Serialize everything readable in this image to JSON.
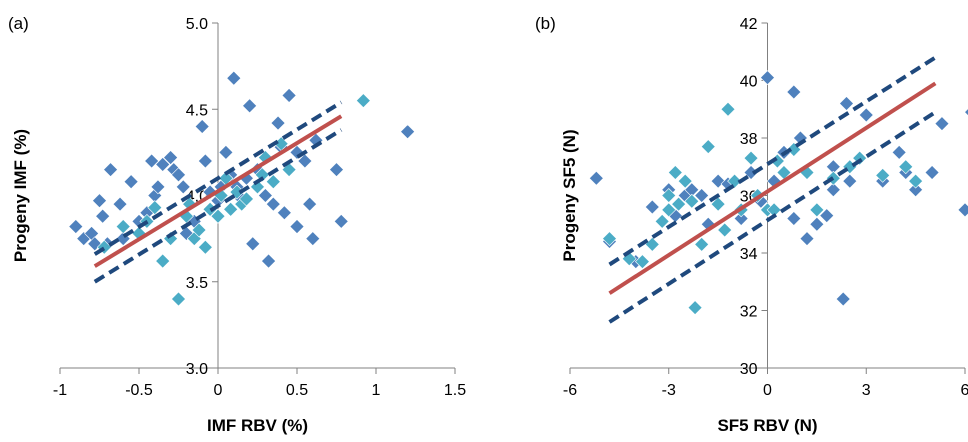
{
  "chart_data": [
    {
      "type": "scatter",
      "panel_label": "(a)",
      "xlabel": "IMF RBV (%)",
      "ylabel": "Progeny  IMF (%)",
      "xlim": [
        -1,
        1.5
      ],
      "ylim": [
        3.0,
        5.0
      ],
      "x_ticks": [
        "-1",
        "-0.5",
        "0",
        "0.5",
        "1",
        "1.5"
      ],
      "y_ticks": [
        "3.0",
        "3.5",
        "4.0",
        "4.5",
        "5.0"
      ],
      "grid": false,
      "marker_colors": [
        "#4f81bd",
        "#4bacc6"
      ],
      "fit_line": {
        "color": "#c0504d",
        "x": [
          -0.78,
          0.78
        ],
        "y": [
          3.59,
          4.46
        ]
      },
      "ci_lines": {
        "color": "#1f497d",
        "upper": {
          "x": [
            -0.78,
            0.78
          ],
          "y": [
            3.66,
            4.54
          ]
        },
        "lower": {
          "x": [
            -0.78,
            0.78
          ],
          "y": [
            3.5,
            4.38
          ]
        }
      },
      "series": [
        {
          "points": [
            [
              -0.9,
              3.82
            ],
            [
              -0.85,
              3.75
            ],
            [
              -0.8,
              3.78
            ],
            [
              -0.78,
              3.72
            ],
            [
              -0.75,
              3.97
            ],
            [
              -0.73,
              3.88
            ],
            [
              -0.7,
              3.72
            ],
            [
              -0.68,
              4.15
            ],
            [
              -0.62,
              3.95
            ],
            [
              -0.6,
              3.75
            ],
            [
              -0.55,
              4.08
            ],
            [
              -0.5,
              3.85
            ],
            [
              -0.45,
              3.9
            ],
            [
              -0.42,
              4.2
            ],
            [
              -0.4,
              4.0
            ],
            [
              -0.38,
              4.05
            ],
            [
              -0.35,
              4.18
            ],
            [
              -0.3,
              4.22
            ],
            [
              -0.28,
              4.15
            ],
            [
              -0.25,
              4.12
            ],
            [
              -0.22,
              4.05
            ],
            [
              -0.2,
              3.78
            ],
            [
              -0.15,
              3.85
            ],
            [
              -0.1,
              4.4
            ],
            [
              -0.08,
              4.2
            ],
            [
              -0.05,
              4.02
            ],
            [
              0.0,
              3.97
            ],
            [
              0.02,
              4.05
            ],
            [
              0.05,
              4.25
            ],
            [
              0.08,
              4.12
            ],
            [
              0.1,
              4.68
            ],
            [
              0.12,
              4.05
            ],
            [
              0.15,
              3.98
            ],
            [
              0.18,
              4.1
            ],
            [
              0.2,
              4.52
            ],
            [
              0.22,
              3.72
            ],
            [
              0.25,
              4.15
            ],
            [
              0.3,
              4.0
            ],
            [
              0.35,
              3.95
            ],
            [
              0.38,
              4.42
            ],
            [
              0.4,
              4.28
            ],
            [
              0.42,
              3.9
            ],
            [
              0.45,
              4.58
            ],
            [
              0.5,
              4.25
            ],
            [
              0.5,
              3.82
            ],
            [
              0.55,
              4.2
            ],
            [
              0.58,
              3.95
            ],
            [
              0.6,
              3.75
            ],
            [
              0.62,
              4.32
            ],
            [
              0.75,
              4.15
            ],
            [
              0.78,
              3.85
            ],
            [
              0.32,
              3.62
            ],
            [
              1.2,
              4.37
            ]
          ]
        },
        {
          "points": [
            [
              -0.72,
              3.7
            ],
            [
              -0.6,
              3.82
            ],
            [
              -0.5,
              3.78
            ],
            [
              -0.45,
              3.85
            ],
            [
              -0.35,
              3.62
            ],
            [
              -0.3,
              3.75
            ],
            [
              -0.25,
              3.4
            ],
            [
              -0.2,
              3.88
            ],
            [
              -0.18,
              3.95
            ],
            [
              -0.15,
              3.75
            ],
            [
              -0.12,
              3.8
            ],
            [
              -0.08,
              3.7
            ],
            [
              -0.05,
              3.92
            ],
            [
              0.0,
              3.88
            ],
            [
              0.02,
              4.0
            ],
            [
              0.05,
              4.1
            ],
            [
              0.08,
              3.92
            ],
            [
              0.12,
              4.02
            ],
            [
              0.15,
              3.95
            ],
            [
              0.18,
              3.98
            ],
            [
              0.25,
              4.05
            ],
            [
              0.28,
              4.12
            ],
            [
              0.3,
              4.22
            ],
            [
              0.35,
              4.08
            ],
            [
              0.4,
              4.3
            ],
            [
              0.45,
              4.15
            ],
            [
              0.92,
              4.55
            ],
            [
              -0.4,
              3.93
            ]
          ]
        }
      ]
    },
    {
      "type": "scatter",
      "panel_label": "(b)",
      "xlabel": "SF5 RBV (N)",
      "ylabel": "Progeny  SF5 (N)",
      "xlim": [
        -6,
        6
      ],
      "ylim": [
        30,
        42
      ],
      "x_ticks": [
        "-6",
        "-3",
        "0",
        "3",
        "6"
      ],
      "y_ticks": [
        "30",
        "32",
        "34",
        "36",
        "38",
        "40",
        "42"
      ],
      "grid": false,
      "marker_colors": [
        "#4f81bd",
        "#4bacc6"
      ],
      "fit_line": {
        "color": "#c0504d",
        "x": [
          -4.8,
          5.1
        ],
        "y": [
          32.6,
          39.9
        ]
      },
      "ci_lines": {
        "color": "#1f497d",
        "upper": {
          "x": [
            -4.8,
            5.1
          ],
          "y": [
            33.6,
            40.8
          ]
        },
        "lower": {
          "x": [
            -4.8,
            5.1
          ],
          "y": [
            31.6,
            38.9
          ]
        }
      },
      "series": [
        {
          "points": [
            [
              -5.2,
              36.6
            ],
            [
              -3.5,
              35.6
            ],
            [
              -3.0,
              36.2
            ],
            [
              -2.8,
              35.3
            ],
            [
              -2.5,
              36.0
            ],
            [
              -2.3,
              36.2
            ],
            [
              -2.0,
              36.0
            ],
            [
              -1.8,
              35.0
            ],
            [
              -1.5,
              36.5
            ],
            [
              -1.2,
              36.4
            ],
            [
              -0.8,
              35.2
            ],
            [
              -0.5,
              36.8
            ],
            [
              -0.2,
              35.8
            ],
            [
              0.0,
              40.1
            ],
            [
              0.2,
              36.5
            ],
            [
              0.5,
              37.5
            ],
            [
              0.8,
              35.2
            ],
            [
              0.8,
              39.6
            ],
            [
              1.0,
              38.0
            ],
            [
              1.2,
              34.5
            ],
            [
              1.5,
              35.0
            ],
            [
              1.8,
              35.3
            ],
            [
              2.0,
              36.2
            ],
            [
              2.0,
              37.0
            ],
            [
              2.3,
              32.4
            ],
            [
              2.4,
              39.2
            ],
            [
              2.5,
              36.5
            ],
            [
              3.0,
              38.8
            ],
            [
              3.5,
              36.5
            ],
            [
              4.0,
              37.5
            ],
            [
              4.2,
              36.8
            ],
            [
              4.5,
              36.2
            ],
            [
              5.0,
              36.8
            ],
            [
              5.3,
              38.5
            ],
            [
              6.0,
              35.5
            ],
            [
              6.2,
              38.9
            ],
            [
              -4.0,
              33.7
            ],
            [
              -4.8,
              34.4
            ]
          ]
        },
        {
          "points": [
            [
              -4.8,
              34.5
            ],
            [
              -4.2,
              33.8
            ],
            [
              -3.8,
              33.7
            ],
            [
              -3.5,
              34.3
            ],
            [
              -3.2,
              35.1
            ],
            [
              -3.0,
              35.5
            ],
            [
              -2.8,
              36.8
            ],
            [
              -2.7,
              35.7
            ],
            [
              -2.5,
              36.5
            ],
            [
              -2.3,
              35.8
            ],
            [
              -2.2,
              32.1
            ],
            [
              -2.0,
              34.3
            ],
            [
              -1.8,
              37.7
            ],
            [
              -1.5,
              35.7
            ],
            [
              -1.3,
              34.8
            ],
            [
              -1.2,
              39.0
            ],
            [
              -1.0,
              36.5
            ],
            [
              -0.8,
              35.5
            ],
            [
              -0.5,
              37.3
            ],
            [
              -0.3,
              36.0
            ],
            [
              0.0,
              35.5
            ],
            [
              0.2,
              35.5
            ],
            [
              0.3,
              37.2
            ],
            [
              0.5,
              36.8
            ],
            [
              0.8,
              37.6
            ],
            [
              1.2,
              36.8
            ],
            [
              1.5,
              35.5
            ],
            [
              2.0,
              36.6
            ],
            [
              2.5,
              37.0
            ],
            [
              2.8,
              37.3
            ],
            [
              3.5,
              36.7
            ],
            [
              4.2,
              37.0
            ],
            [
              4.5,
              36.5
            ],
            [
              -3.0,
              36.0
            ]
          ]
        }
      ]
    }
  ]
}
